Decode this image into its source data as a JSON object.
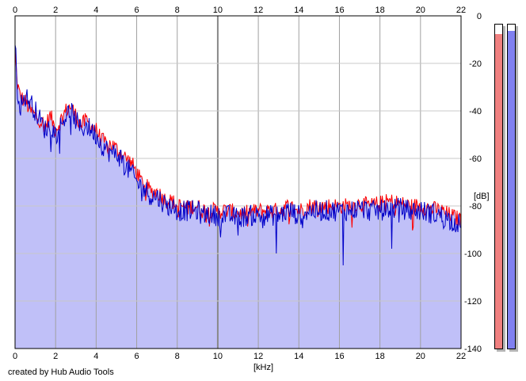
{
  "credit": "created by Hub Audio Tools",
  "colors": {
    "background": "#ffffff",
    "plot_fill": "#c0c0f8",
    "grid_light": "#c8c8c8",
    "grid_dark": "#888888",
    "left_channel": "#ff0000",
    "right_channel": "#0000c8",
    "meter_left": "#f08080",
    "meter_right": "#8080f0"
  },
  "meters": {
    "left": {
      "name": "left-level-meter",
      "level_fraction": 0.97
    },
    "right": {
      "name": "right-level-meter",
      "level_fraction": 0.98
    }
  },
  "chart_data": {
    "type": "area",
    "title": "",
    "xlabel": "[kHz]",
    "ylabel": "[dB]",
    "xlim": [
      0,
      22
    ],
    "ylim": [
      -140,
      0
    ],
    "x_ticks": [
      "0",
      "2",
      "4",
      "6",
      "8",
      "10",
      "12",
      "14",
      "16",
      "18",
      "20",
      "22"
    ],
    "x_tick_values": [
      0,
      2,
      4,
      6,
      8,
      10,
      12,
      14,
      16,
      18,
      20,
      22
    ],
    "y_ticks": [
      "0",
      "-20",
      "-40",
      "-60",
      "-80",
      "-100",
      "-120",
      "-140"
    ],
    "y_tick_values": [
      0,
      -20,
      -40,
      -60,
      -80,
      -100,
      -120,
      -140
    ],
    "major_x_gridlines": [
      10
    ],
    "grid": true,
    "legend": "none",
    "series": [
      {
        "channel": "left",
        "color": "#ff0000",
        "x": [
          0,
          0.1,
          0.25,
          0.5,
          0.75,
          1,
          1.25,
          1.5,
          1.75,
          2,
          2.25,
          2.5,
          2.75,
          3,
          3.25,
          3.5,
          3.75,
          4,
          4.25,
          4.5,
          4.75,
          5,
          5.25,
          5.5,
          5.75,
          6,
          6.25,
          6.5,
          6.75,
          7,
          7.25,
          7.5,
          7.75,
          8,
          8.25,
          8.5,
          8.75,
          9,
          9.25,
          9.5,
          9.75,
          10,
          10.5,
          11,
          11.5,
          12,
          12.5,
          13,
          13.5,
          14,
          14.5,
          15,
          15.5,
          16,
          16.5,
          17,
          17.5,
          18,
          18.5,
          19,
          19.5,
          20,
          20.5,
          21,
          21.5,
          22
        ],
        "y": [
          -15,
          -28,
          -34,
          -36,
          -40,
          -42,
          -44,
          -46,
          -42,
          -48,
          -44,
          -40,
          -38,
          -42,
          -46,
          -44,
          -46,
          -48,
          -52,
          -54,
          -54,
          -56,
          -58,
          -60,
          -62,
          -66,
          -70,
          -72,
          -74,
          -74,
          -76,
          -78,
          -78,
          -80,
          -80,
          -81,
          -80,
          -80,
          -82,
          -81,
          -82,
          -82,
          -82,
          -83,
          -83,
          -82,
          -82,
          -82,
          -80,
          -82,
          -80,
          -80,
          -80,
          -80,
          -80,
          -79,
          -80,
          -79,
          -78,
          -79,
          -80,
          -80,
          -81,
          -82,
          -84,
          -86
        ]
      },
      {
        "channel": "right",
        "color": "#0000c8",
        "x": [
          0,
          0.1,
          0.25,
          0.5,
          0.75,
          1,
          1.25,
          1.5,
          1.75,
          2,
          2.25,
          2.5,
          2.75,
          3,
          3.25,
          3.5,
          3.75,
          4,
          4.25,
          4.5,
          4.75,
          5,
          5.25,
          5.5,
          5.75,
          6,
          6.25,
          6.5,
          6.75,
          7,
          7.25,
          7.5,
          7.75,
          8,
          8.25,
          8.5,
          8.75,
          9,
          9.25,
          9.5,
          9.75,
          10,
          10.5,
          11,
          11.5,
          12,
          12.5,
          13,
          13.5,
          14,
          14.5,
          15,
          15.5,
          16,
          16.5,
          17,
          17.5,
          18,
          18.5,
          19,
          19.5,
          20,
          20.5,
          21,
          21.5,
          22
        ],
        "y": [
          -10,
          -30,
          -38,
          -34,
          -36,
          -40,
          -44,
          -48,
          -46,
          -50,
          -46,
          -42,
          -40,
          -44,
          -48,
          -46,
          -48,
          -50,
          -54,
          -56,
          -58,
          -58,
          -60,
          -64,
          -66,
          -70,
          -72,
          -74,
          -76,
          -76,
          -78,
          -80,
          -80,
          -82,
          -82,
          -82,
          -82,
          -82,
          -84,
          -83,
          -84,
          -84,
          -84,
          -85,
          -84,
          -84,
          -84,
          -84,
          -82,
          -84,
          -82,
          -82,
          -82,
          -82,
          -82,
          -81,
          -82,
          -82,
          -81,
          -81,
          -82,
          -82,
          -83,
          -84,
          -86,
          -88
        ]
      }
    ],
    "dips": [
      {
        "channel": "right",
        "x": 16.2,
        "y": -105
      },
      {
        "channel": "right",
        "x": 12.9,
        "y": -100
      },
      {
        "channel": "right",
        "x": 18.6,
        "y": -98
      }
    ]
  }
}
